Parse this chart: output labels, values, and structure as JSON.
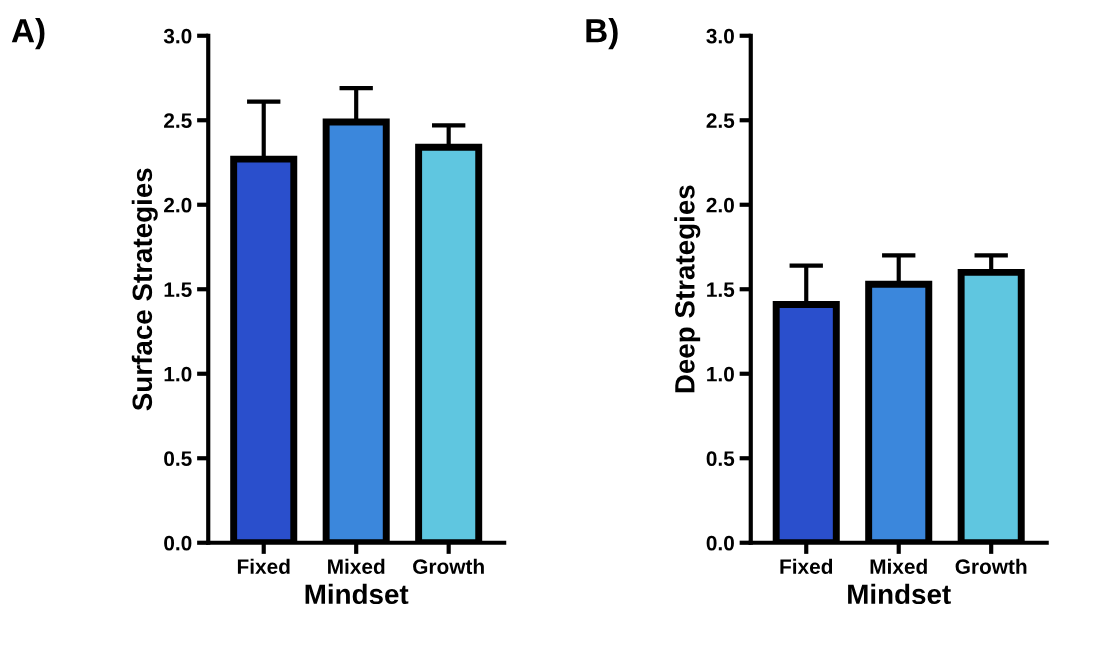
{
  "chart_data": [
    {
      "type": "bar",
      "xlabel": "Mindset",
      "ylabel": "Surface Strategies",
      "annotations": [
        "A)"
      ],
      "categories": [
        "Fixed",
        "Mixed",
        "Growth"
      ],
      "values": [
        2.27,
        2.49,
        2.34
      ],
      "errors": [
        0.34,
        0.2,
        0.13
      ],
      "colors": [
        "#2a4fcc",
        "#3b87dc",
        "#5fc6e0"
      ],
      "ylim": [
        0,
        3
      ],
      "yticks": [
        {
          "value": 0,
          "label": "0.0"
        },
        {
          "value": 0.5,
          "label": "0.5"
        },
        {
          "value": 1,
          "label": "1.0"
        },
        {
          "value": 1.5,
          "label": "1.5"
        },
        {
          "value": 2,
          "label": "2.0"
        },
        {
          "value": 2.5,
          "label": "2.5"
        },
        {
          "value": 3,
          "label": "3.0"
        }
      ],
      "grid": false,
      "legend": false
    },
    {
      "type": "bar",
      "xlabel": "Mindset",
      "ylabel": "Deep Strategies",
      "annotations": [
        "B)"
      ],
      "categories": [
        "Fixed",
        "Mixed",
        "Growth"
      ],
      "values": [
        1.41,
        1.53,
        1.6
      ],
      "errors": [
        0.23,
        0.17,
        0.1
      ],
      "colors": [
        "#2a4fcc",
        "#3b87dc",
        "#5fc6e0"
      ],
      "ylim": [
        0,
        3
      ],
      "yticks": [
        {
          "value": 0,
          "label": "0.0"
        },
        {
          "value": 0.5,
          "label": "0.5"
        },
        {
          "value": 1,
          "label": "1.0"
        },
        {
          "value": 1.5,
          "label": "1.5"
        },
        {
          "value": 2,
          "label": "2.0"
        },
        {
          "value": 2.5,
          "label": "2.5"
        },
        {
          "value": 3,
          "label": "3.0"
        }
      ],
      "grid": false,
      "legend": false
    }
  ]
}
